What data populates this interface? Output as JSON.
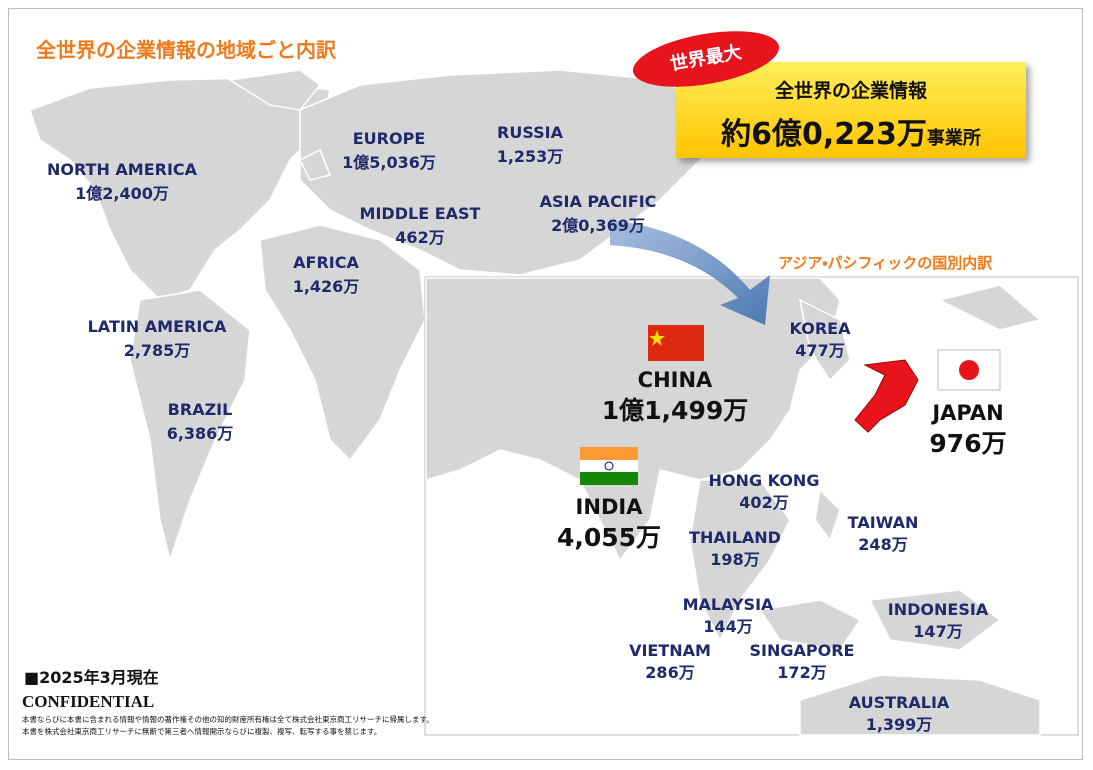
{
  "title": "全世界の企業情報の地域ごと内訳",
  "badge": "世界最大",
  "total": {
    "label": "全世界の企業情報",
    "value": "約6億0,223万",
    "unit": "事業所"
  },
  "regions": [
    {
      "name": "NORTH AMERICA",
      "value": "1億2,400万"
    },
    {
      "name": "EUROPE",
      "value": "1億5,036万"
    },
    {
      "name": "RUSSIA",
      "value": "1,253万"
    },
    {
      "name": "MIDDLE EAST",
      "value": "462万"
    },
    {
      "name": "ASIA PACIFIC",
      "value": "2億0,369万"
    },
    {
      "name": "AFRICA",
      "value": "1,426万"
    },
    {
      "name": "LATIN AMERICA",
      "value": "2,785万"
    },
    {
      "name": "BRAZIL",
      "value": "6,386万"
    }
  ],
  "inset_title": "アジア・パシフィックの国別内訳",
  "countries": [
    {
      "name": "KOREA",
      "value": "477万"
    },
    {
      "name": "CHINA",
      "value": "1億1,499万"
    },
    {
      "name": "JAPAN",
      "value": "976万"
    },
    {
      "name": "INDIA",
      "value": "4,055万"
    },
    {
      "name": "HONG KONG",
      "value": "402万"
    },
    {
      "name": "THAILAND",
      "value": "198万"
    },
    {
      "name": "TAIWAN",
      "value": "248万"
    },
    {
      "name": "MALAYSIA",
      "value": "144万"
    },
    {
      "name": "INDONESIA",
      "value": "147万"
    },
    {
      "name": "VIETNAM",
      "value": "286万"
    },
    {
      "name": "SINGAPORE",
      "value": "172万"
    },
    {
      "name": "AUSTRALIA",
      "value": "1,399万"
    }
  ],
  "date_note": "■2025年3月現在",
  "confidential": "CONFIDENTIAL",
  "disclaimer": [
    "本書ならびに本書に含まれる情報や情報の著作権その他の知的財産所有権は全て株式会社東京商工リサーチに帰属します。",
    "本書を株式会社東京商工リサーチに無断で第三者へ情報開示ならびに複製、複写、転写する事を禁じます。"
  ]
}
